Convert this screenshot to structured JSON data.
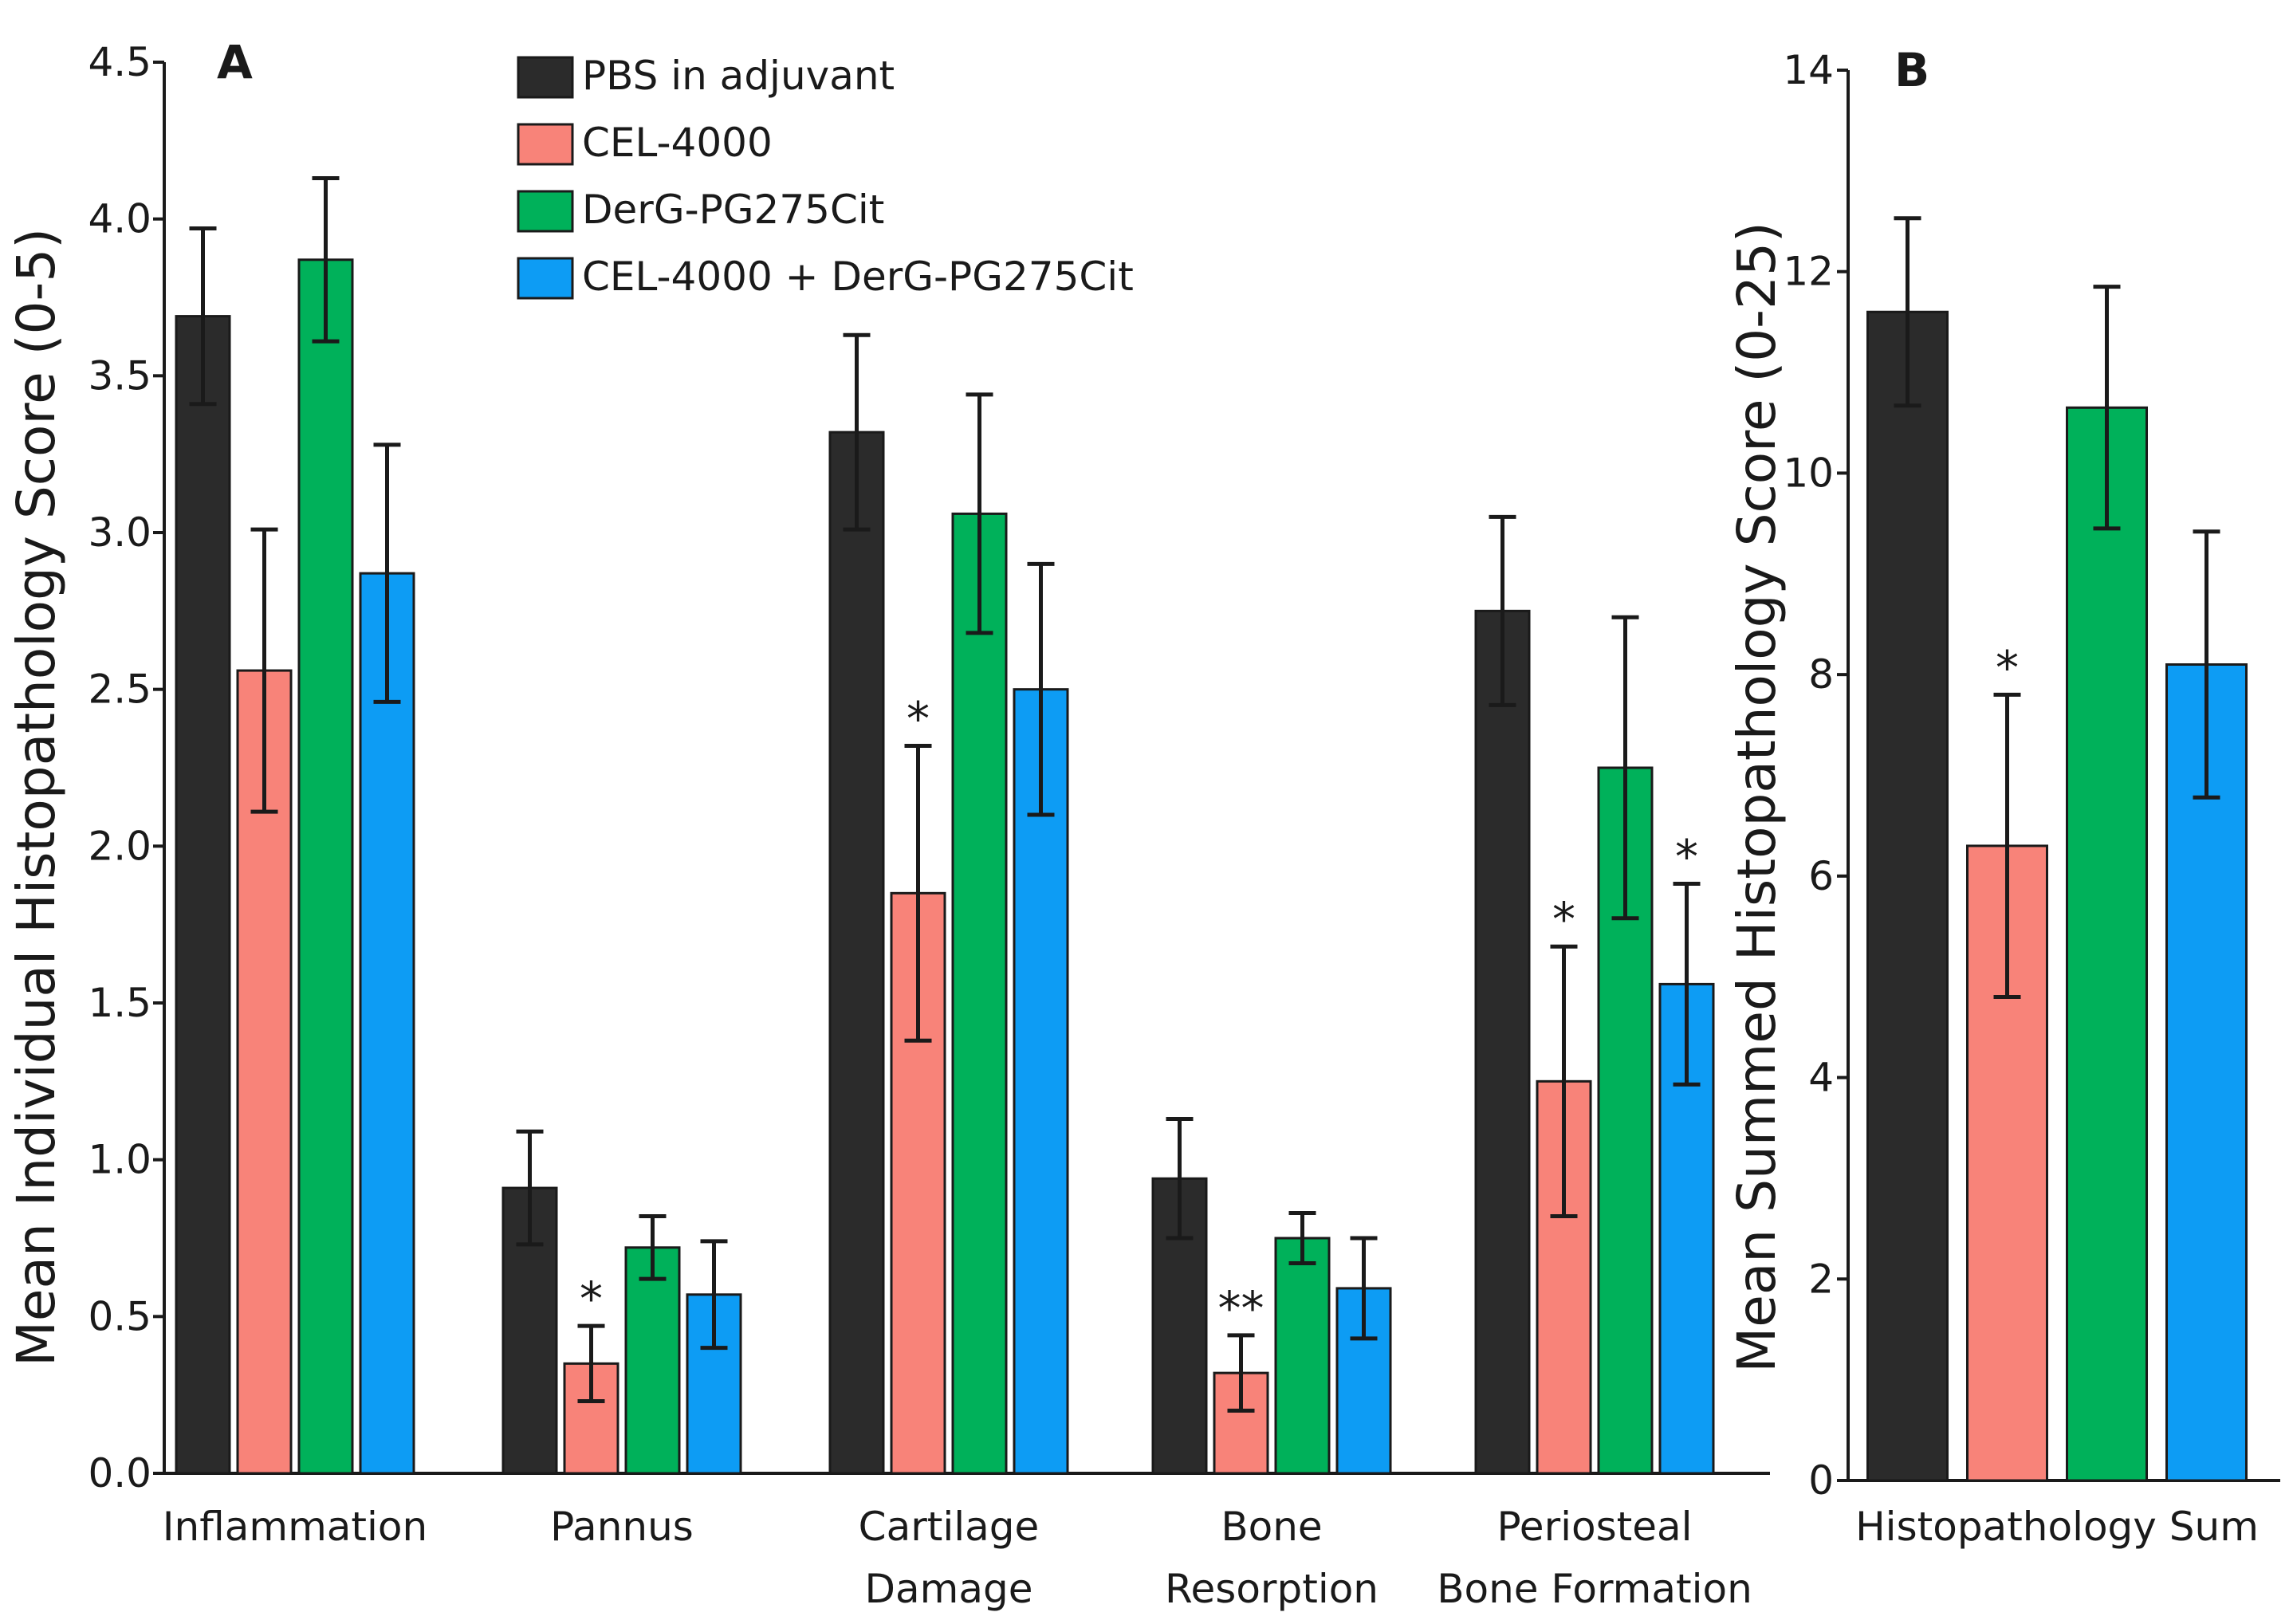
{
  "chart_data": [
    {
      "panel": "A",
      "type": "bar",
      "ylabel": "Mean Individual Histopathology Score (0-5)",
      "ylim": [
        0,
        4.5
      ],
      "yticks": [
        "0.0",
        "0.5",
        "1.0",
        "1.5",
        "2.0",
        "2.5",
        "3.0",
        "3.5",
        "4.0",
        "4.5"
      ],
      "categories": [
        [
          "Inflammation"
        ],
        [
          "Pannus"
        ],
        [
          "Cartilage",
          "Damage"
        ],
        [
          "Bone",
          "Resorption"
        ],
        [
          "Periosteal",
          "Bone Formation"
        ]
      ],
      "series": [
        {
          "name": "PBS in adjuvant",
          "color": "#2b2b2b",
          "values": [
            3.69,
            0.91,
            3.32,
            0.94,
            2.75
          ],
          "errors": [
            0.28,
            0.18,
            0.31,
            0.19,
            0.3
          ]
        },
        {
          "name": "CEL-4000",
          "color": "#f88379",
          "values": [
            2.56,
            0.35,
            1.85,
            0.32,
            1.25
          ],
          "errors": [
            0.45,
            0.12,
            0.47,
            0.12,
            0.43
          ]
        },
        {
          "name": "DerG-PG275Cit",
          "color": "#00b15a",
          "values": [
            3.87,
            0.72,
            3.06,
            0.75,
            2.25
          ],
          "errors": [
            0.26,
            0.1,
            0.38,
            0.08,
            0.48
          ]
        },
        {
          "name": "CEL-4000 + DerG-PG275Cit",
          "color": "#0d9cf4",
          "values": [
            2.87,
            0.57,
            2.5,
            0.59,
            1.56
          ],
          "errors": [
            0.41,
            0.17,
            0.4,
            0.16,
            0.32
          ]
        }
      ],
      "significance": [
        {
          "category": 1,
          "series": 1,
          "label": "*"
        },
        {
          "category": 2,
          "series": 1,
          "label": "*"
        },
        {
          "category": 3,
          "series": 1,
          "label": "**"
        },
        {
          "category": 4,
          "series": 1,
          "label": "*"
        },
        {
          "category": 4,
          "series": 3,
          "label": "*"
        }
      ],
      "legend": [
        "PBS in adjuvant",
        "CEL-4000",
        "DerG-PG275Cit",
        "CEL-4000 + DerG-PG275Cit"
      ],
      "legend_position": "top"
    },
    {
      "panel": "B",
      "type": "bar",
      "ylabel": "Mean Summed Histopathology Score (0-25)",
      "ylim": [
        0,
        14
      ],
      "yticks": [
        "0",
        "2",
        "4",
        "6",
        "8",
        "10",
        "12",
        "14"
      ],
      "categories": [
        [
          "Histopathology Sum"
        ]
      ],
      "series": [
        {
          "name": "PBS in adjuvant",
          "color": "#2b2b2b",
          "values": [
            11.6
          ],
          "errors": [
            0.93
          ]
        },
        {
          "name": "CEL-4000",
          "color": "#f88379",
          "values": [
            6.3
          ],
          "errors": [
            1.5
          ]
        },
        {
          "name": "DerG-PG275Cit",
          "color": "#00b15a",
          "values": [
            10.65
          ],
          "errors": [
            1.2
          ]
        },
        {
          "name": "CEL-4000 + DerG-PG275Cit",
          "color": "#0d9cf4",
          "values": [
            8.1
          ],
          "errors": [
            1.32
          ]
        }
      ],
      "significance": [
        {
          "category": 0,
          "series": 1,
          "label": "*"
        }
      ]
    }
  ]
}
